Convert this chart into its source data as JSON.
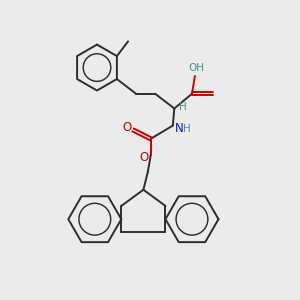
{
  "bg_color": "#ebebeb",
  "bond_color": "#2d2d2d",
  "oxygen_color": "#cc0000",
  "nitrogen_color": "#1010cc",
  "hydrogen_color": "#4a9090",
  "bond_lw": 1.4,
  "fig_size": [
    3.0,
    3.0
  ],
  "dpi": 100,
  "xlim": [
    0,
    10
  ],
  "ylim": [
    0,
    10
  ],
  "ring_r": 0.78
}
